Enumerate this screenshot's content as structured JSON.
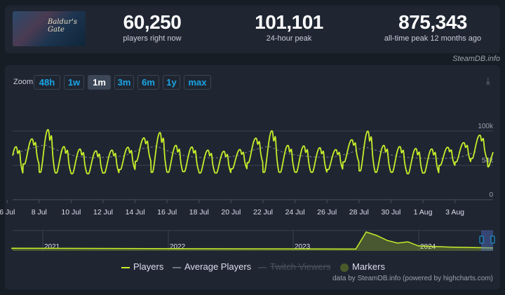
{
  "header": {
    "cover_text": "Baldur's Gate",
    "stats": [
      {
        "value": "60,250",
        "label": "players right now"
      },
      {
        "value": "101,101",
        "label": "24-hour peak"
      },
      {
        "value": "875,343",
        "label": "all-time peak 12 months ago"
      }
    ]
  },
  "credit": "SteamDB.info",
  "zoom": {
    "label": "Zoom",
    "buttons": [
      "48h",
      "1w",
      "1m",
      "3m",
      "6m",
      "1y",
      "max"
    ],
    "active": "1m"
  },
  "legend": {
    "items": [
      "Players",
      "Average Players",
      "Twitch Viewers",
      "Markers"
    ]
  },
  "footer": "data by SteamDB.info (powered by highcharts.com)",
  "colors": {
    "players": "#c8ee2a",
    "average": "#6b7480",
    "accent": "#1aa6e8",
    "markers": "#4a5a2a"
  },
  "chart_data": {
    "type": "line",
    "ylim": [
      0,
      115000
    ],
    "y_ticks": [
      "0",
      "50k",
      "100k"
    ],
    "x_ticks": [
      "6 Jul",
      "8 Jul",
      "10 Jul",
      "12 Jul",
      "14 Jul",
      "16 Jul",
      "18 Jul",
      "20 Jul",
      "22 Jul",
      "24 Jul",
      "26 Jul",
      "28 Jul",
      "30 Jul",
      "1 Aug",
      "3 Aug"
    ],
    "grid": true,
    "legend_position": "bottom",
    "series": [
      {
        "name": "Players",
        "daily": [
          {
            "date": "5 Jul",
            "peak": 84000,
            "low": 38000
          },
          {
            "date": "6 Jul",
            "peak": 95000,
            "low": 52000
          },
          {
            "date": "7 Jul",
            "peak": 113000,
            "low": 40000
          },
          {
            "date": "8 Jul",
            "peak": 84000,
            "low": 39000
          },
          {
            "date": "9 Jul",
            "peak": 80000,
            "low": 38000
          },
          {
            "date": "10 Jul",
            "peak": 77000,
            "low": 38000
          },
          {
            "date": "11 Jul",
            "peak": 78000,
            "low": 39000
          },
          {
            "date": "12 Jul",
            "peak": 82000,
            "low": 44000
          },
          {
            "date": "13 Jul",
            "peak": 96000,
            "low": 56000
          },
          {
            "date": "14 Jul",
            "peak": 108000,
            "low": 40000
          },
          {
            "date": "15 Jul",
            "peak": 86000,
            "low": 40000
          },
          {
            "date": "16 Jul",
            "peak": 83000,
            "low": 41000
          },
          {
            "date": "17 Jul",
            "peak": 78000,
            "low": 39000
          },
          {
            "date": "18 Jul",
            "peak": 76000,
            "low": 39000
          },
          {
            "date": "19 Jul",
            "peak": 78000,
            "low": 45000
          },
          {
            "date": "20 Jul",
            "peak": 96000,
            "low": 54000
          },
          {
            "date": "21 Jul",
            "peak": 111000,
            "low": 40000
          },
          {
            "date": "22 Jul",
            "peak": 86000,
            "low": 40000
          },
          {
            "date": "23 Jul",
            "peak": 85000,
            "low": 40000
          },
          {
            "date": "24 Jul",
            "peak": 82000,
            "low": 40000
          },
          {
            "date": "25 Jul",
            "peak": 78000,
            "low": 44000
          },
          {
            "date": "26 Jul",
            "peak": 93000,
            "low": 55000
          },
          {
            "date": "27 Jul",
            "peak": 110000,
            "low": 42000
          },
          {
            "date": "28 Jul",
            "peak": 86000,
            "low": 40000
          },
          {
            "date": "29 Jul",
            "peak": 84000,
            "low": 40000
          },
          {
            "date": "30 Jul",
            "peak": 81000,
            "low": 38000
          },
          {
            "date": "31 Jul",
            "peak": 80000,
            "low": 39000
          },
          {
            "date": "1 Aug",
            "peak": 81000,
            "low": 50000
          },
          {
            "date": "2 Aug",
            "peak": 88000,
            "low": 55000
          },
          {
            "date": "3 Aug",
            "peak": 100000,
            "low": 60000
          }
        ]
      },
      {
        "name": "Average Players",
        "values": [
          66000,
          74000,
          80000,
          70000,
          63000,
          61000,
          62000,
          64000,
          74000,
          78000,
          68000,
          63000,
          61000,
          61000,
          64000,
          72000,
          78000,
          68000,
          64000,
          62000,
          62000,
          67000,
          77000,
          70000,
          63000,
          61000,
          60000,
          60000,
          62000,
          70000
        ]
      }
    ],
    "navigator": {
      "x_ticks": [
        "2021",
        "2022",
        "2023",
        "2024"
      ],
      "values": [
        {
          "date": "2020-10",
          "v": 60000
        },
        {
          "date": "2023-07",
          "v": 20000
        },
        {
          "date": "2023-08",
          "v": 875000
        },
        {
          "date": "2023-09",
          "v": 700000
        },
        {
          "date": "2023-10",
          "v": 450000
        },
        {
          "date": "2023-11",
          "v": 320000
        },
        {
          "date": "2023-12",
          "v": 380000
        },
        {
          "date": "2024-01",
          "v": 180000
        },
        {
          "date": "2024-04",
          "v": 120000
        },
        {
          "date": "2024-08",
          "v": 80000
        }
      ]
    }
  }
}
